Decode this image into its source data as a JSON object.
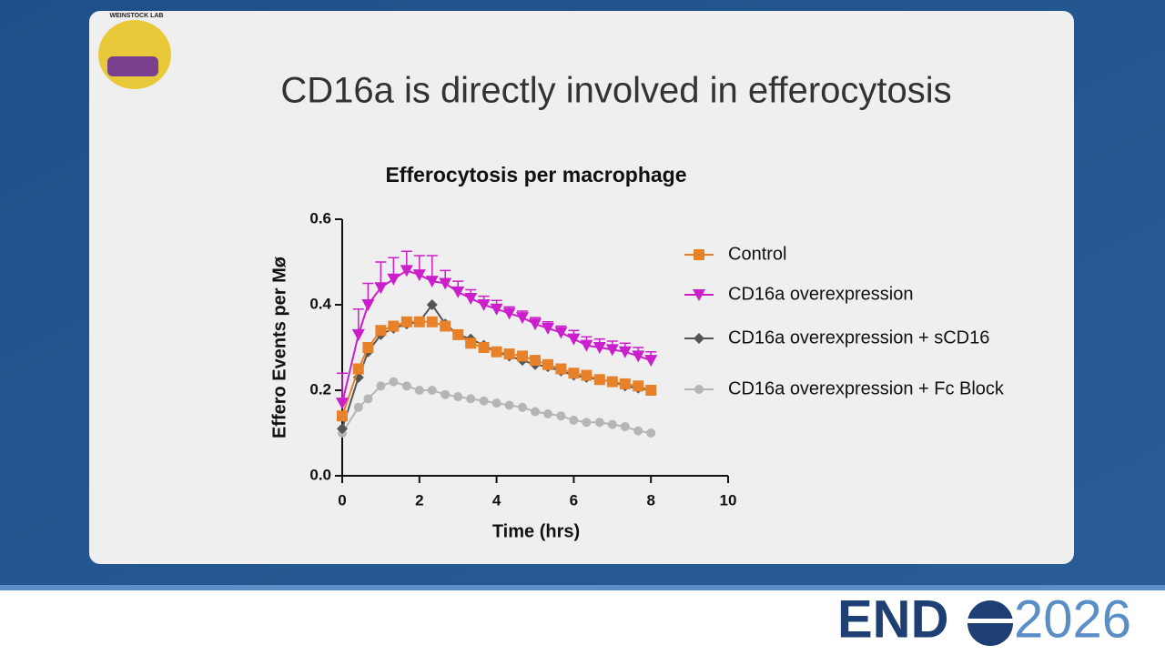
{
  "slide_title": "CD16a is directly involved in efferocytosis",
  "logo_text": "WEINSTOCK LAB",
  "footer_logo": {
    "left": "END",
    "right": "2026"
  },
  "chart_data": {
    "type": "line",
    "title": "Efferocytosis per macrophage",
    "x_label": "Time (hrs)",
    "y_label": "Effero Events per Mø",
    "x": [
      0,
      0.42,
      0.67,
      1.0,
      1.33,
      1.67,
      2.0,
      2.33,
      2.67,
      3.0,
      3.33,
      3.67,
      4.0,
      4.33,
      4.67,
      5.0,
      5.33,
      5.67,
      6.0,
      6.33,
      6.67,
      7.0,
      7.33,
      7.67,
      8.0
    ],
    "xlim": [
      0,
      10
    ],
    "xticks": [
      0,
      2,
      4,
      6,
      8,
      10
    ],
    "ylim": [
      0,
      0.6
    ],
    "yticks": [
      {
        "value": 0,
        "label": "0.0"
      },
      0.2,
      0.4,
      0.6
    ],
    "legend": "right",
    "series": [
      {
        "name": "Control",
        "color": "#e8822a",
        "marker": "square",
        "values": [
          0.14,
          0.25,
          0.3,
          0.34,
          0.35,
          0.36,
          0.36,
          0.36,
          0.35,
          0.33,
          0.31,
          0.3,
          0.29,
          0.285,
          0.28,
          0.27,
          0.26,
          0.25,
          0.24,
          0.235,
          0.225,
          0.22,
          0.215,
          0.21,
          0.2
        ]
      },
      {
        "name": "CD16a overexpression",
        "color": "#cc1fcc",
        "marker": "triangle-down",
        "values": [
          0.17,
          0.33,
          0.4,
          0.44,
          0.46,
          0.48,
          0.47,
          0.455,
          0.45,
          0.43,
          0.415,
          0.4,
          0.39,
          0.38,
          0.37,
          0.355,
          0.345,
          0.335,
          0.32,
          0.305,
          0.3,
          0.295,
          0.29,
          0.28,
          0.27
        ],
        "errors": [
          0.07,
          0.06,
          0.05,
          0.06,
          0.05,
          0.045,
          0.045,
          0.06,
          0.03,
          0.025,
          0.02,
          0.02,
          0.02,
          0.015,
          0.015,
          0.015,
          0.015,
          0.015,
          0.02,
          0.02,
          0.02,
          0.02,
          0.02,
          0.02,
          0.02
        ]
      },
      {
        "name": "CD16a overexpression + sCD16",
        "color": "#555555",
        "marker": "diamond",
        "values": [
          0.11,
          0.23,
          0.29,
          0.33,
          0.345,
          0.355,
          0.36,
          0.4,
          0.355,
          0.33,
          0.32,
          0.305,
          0.29,
          0.28,
          0.27,
          0.26,
          0.255,
          0.245,
          0.235,
          0.23,
          0.225,
          0.22,
          0.21,
          0.205,
          0.2
        ]
      },
      {
        "name": "CD16a overexpression + Fc Block",
        "color": "#b5b5b5",
        "marker": "circle",
        "values": [
          0.1,
          0.16,
          0.18,
          0.21,
          0.22,
          0.21,
          0.2,
          0.2,
          0.19,
          0.185,
          0.18,
          0.175,
          0.17,
          0.165,
          0.16,
          0.15,
          0.145,
          0.14,
          0.13,
          0.125,
          0.125,
          0.12,
          0.115,
          0.105,
          0.1
        ]
      }
    ]
  }
}
